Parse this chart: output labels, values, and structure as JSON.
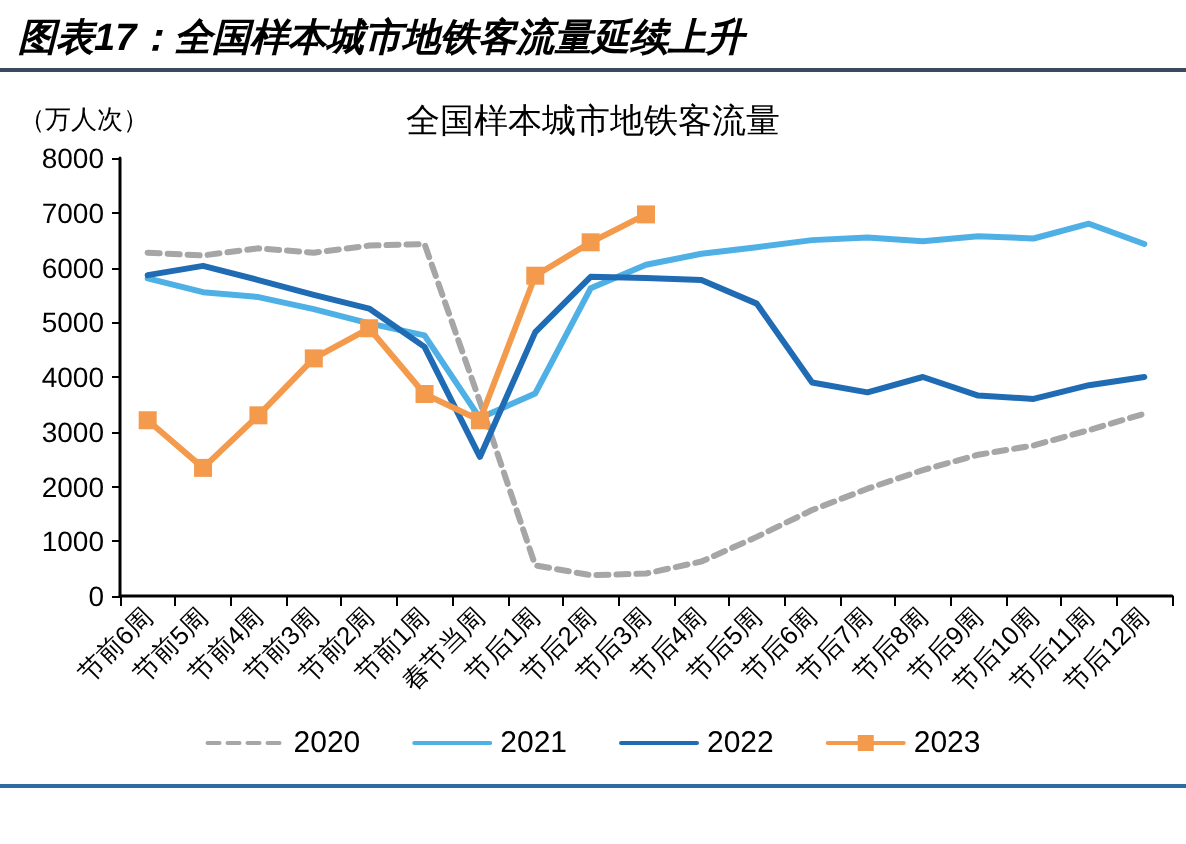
{
  "chart_data": {
    "type": "line",
    "title": "图表17：全国样本城市地铁客流量延续上升",
    "subtitle": "全国样本城市地铁客流量",
    "ylabel": "（万人次）",
    "categories": [
      "节前6周",
      "节前5周",
      "节前4周",
      "节前3周",
      "节前2周",
      "节前1周",
      "春节当周",
      "节后1周",
      "节后2周",
      "节后3周",
      "节后4周",
      "节后5周",
      "节后6周",
      "节后7周",
      "节后8周",
      "节后9周",
      "节后10周",
      "节后11周",
      "节后12周"
    ],
    "series": [
      {
        "name": "2020",
        "color": "#a6a6a6",
        "line_style": "dashed",
        "values": [
          6270,
          6220,
          6350,
          6270,
          6400,
          6430,
          3550,
          560,
          380,
          410,
          630,
          1080,
          1570,
          1960,
          2300,
          2580,
          2750,
          3030,
          3330
        ]
      },
      {
        "name": "2021",
        "color": "#4fb0e6",
        "values": [
          5800,
          5550,
          5460,
          5240,
          4980,
          4760,
          3250,
          3700,
          5620,
          6050,
          6250,
          6370,
          6500,
          6550,
          6480,
          6570,
          6530,
          6800,
          6430
        ]
      },
      {
        "name": "2022",
        "color": "#1f6cb4",
        "values": [
          5860,
          6030,
          5770,
          5500,
          5250,
          4550,
          2540,
          4820,
          5830,
          5810,
          5770,
          5340,
          3900,
          3720,
          4000,
          3660,
          3600,
          3850,
          4000
        ]
      },
      {
        "name": "2023",
        "color": "#f39a4c",
        "marker": "square",
        "values": [
          3210,
          2340,
          3300,
          4340,
          4890,
          3690,
          3210,
          5850,
          6460,
          6970,
          null,
          null,
          null,
          null,
          null,
          null,
          null,
          null,
          null
        ]
      }
    ],
    "ylim": [
      0,
      8000
    ],
    "yticks": [
      0,
      1000,
      2000,
      3000,
      4000,
      5000,
      6000,
      7000,
      8000
    ],
    "grid": false,
    "legend": "bottom",
    "marker": "none",
    "line_style": "solid"
  }
}
